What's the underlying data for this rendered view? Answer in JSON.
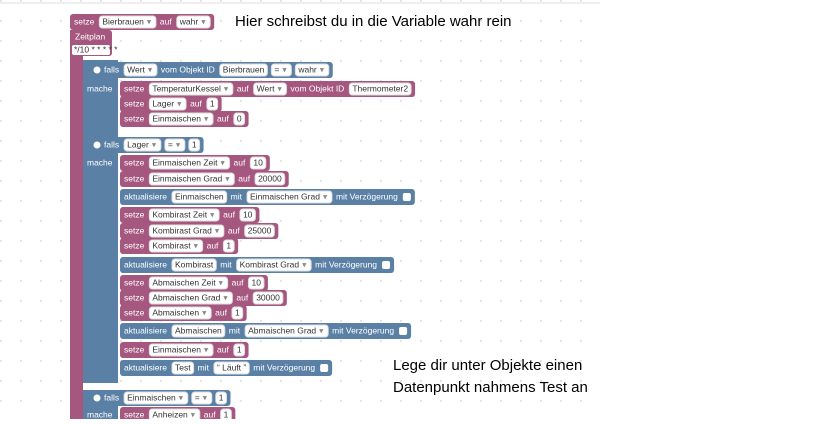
{
  "annotations": [
    "Hier schreibst du in die Variable wahr rein",
    "Lege dir unter Objekte einen",
    "Datenpunkt nahmens Test an"
  ],
  "zeitplan": {
    "label": "Zeitplan",
    "cron": "*/10 * * * * *"
  },
  "rows": [
    {
      "items": [
        {
          "label": "setze"
        },
        {
          "dropdown": "Bierbrauen"
        },
        {
          "label": "auf"
        },
        {
          "dropdown": "wahr"
        }
      ]
    },
    {
      "items": [
        {
          "label": "falls"
        },
        {
          "dropdown": "Wert"
        },
        {
          "label": "vom Objekt ID"
        },
        {
          "input": "Bierbrauen"
        },
        {
          "dropdown": "="
        },
        {
          "dropdown": "wahr"
        }
      ]
    },
    {
      "side": "mache",
      "items": [
        {
          "label": "setze"
        },
        {
          "dropdown": "TemperaturKessel"
        },
        {
          "label": "auf"
        },
        {
          "dropdown": "Wert"
        },
        {
          "label": "vom Objekt ID"
        },
        {
          "input": "Thermometer2"
        }
      ]
    },
    {
      "items": [
        {
          "label": "setze"
        },
        {
          "dropdown": "Lager"
        },
        {
          "label": "auf"
        },
        {
          "input": "1"
        }
      ]
    },
    {
      "items": [
        {
          "label": "setze"
        },
        {
          "dropdown": "Einmaischen"
        },
        {
          "label": "auf"
        },
        {
          "input": "0"
        }
      ]
    },
    {
      "items": [
        {
          "label": "falls"
        },
        {
          "dropdown": "Lager"
        },
        {
          "dropdown": "="
        },
        {
          "input": "1"
        }
      ]
    },
    {
      "side": "mache",
      "items": [
        {
          "label": "setze"
        },
        {
          "dropdown": "Einmaischen Zeit"
        },
        {
          "label": "auf"
        },
        {
          "input": "10"
        }
      ]
    },
    {
      "items": [
        {
          "label": "setze"
        },
        {
          "dropdown": "Einmaischen Grad"
        },
        {
          "label": "auf"
        },
        {
          "input": "20000"
        }
      ]
    },
    {
      "items": [
        {
          "label": "aktualisiere"
        },
        {
          "input": "Einmaischen"
        },
        {
          "label": "mit"
        },
        {
          "dropdown": "Einmaischen Grad"
        },
        {
          "label": "mit Verzögerung"
        }
      ]
    },
    {
      "items": [
        {
          "label": "setze"
        },
        {
          "dropdown": "Kombirast Zeit"
        },
        {
          "label": "auf"
        },
        {
          "input": "10"
        }
      ]
    },
    {
      "items": [
        {
          "label": "setze"
        },
        {
          "dropdown": "Kombirast Grad"
        },
        {
          "label": "auf"
        },
        {
          "input": "25000"
        }
      ]
    },
    {
      "items": [
        {
          "label": "setze"
        },
        {
          "dropdown": "Kombirast"
        },
        {
          "label": "auf"
        },
        {
          "input": "1"
        }
      ]
    },
    {
      "items": [
        {
          "label": "aktualisiere"
        },
        {
          "input": "Kombirast"
        },
        {
          "label": "mit"
        },
        {
          "dropdown": "Kombirast Grad"
        },
        {
          "label": "mit Verzögerung"
        }
      ]
    },
    {
      "items": [
        {
          "label": "setze"
        },
        {
          "dropdown": "Abmaischen Zeit"
        },
        {
          "label": "auf"
        },
        {
          "input": "10"
        }
      ]
    },
    {
      "items": [
        {
          "label": "setze"
        },
        {
          "dropdown": "Abmaischen Grad"
        },
        {
          "label": "auf"
        },
        {
          "input": "30000"
        }
      ]
    },
    {
      "items": [
        {
          "label": "setze"
        },
        {
          "dropdown": "Abmaischen"
        },
        {
          "label": "auf"
        },
        {
          "input": "1"
        }
      ]
    },
    {
      "items": [
        {
          "label": "aktualisiere"
        },
        {
          "input": "Abmaischen"
        },
        {
          "label": "mit"
        },
        {
          "dropdown": "Abmaischen Grad"
        },
        {
          "label": "mit Verzögerung"
        }
      ]
    },
    {
      "items": [
        {
          "label": "setze"
        },
        {
          "dropdown": "Einmaischen"
        },
        {
          "label": "auf"
        },
        {
          "input": "1"
        }
      ]
    },
    {
      "items": [
        {
          "label": "aktualisiere"
        },
        {
          "input": "Test"
        },
        {
          "label": "mit"
        },
        {
          "input": "“ Läuft ”"
        },
        {
          "label": "mit Verzögerung"
        }
      ]
    },
    {
      "items": [
        {
          "label": "falls"
        },
        {
          "dropdown": "Einmaischen"
        },
        {
          "dropdown": "="
        },
        {
          "input": "1"
        }
      ]
    },
    {
      "side": "mache",
      "items": [
        {
          "label": "setze"
        },
        {
          "dropdown": "Anheizen"
        },
        {
          "label": "auf"
        },
        {
          "input": "1"
        }
      ]
    }
  ]
}
